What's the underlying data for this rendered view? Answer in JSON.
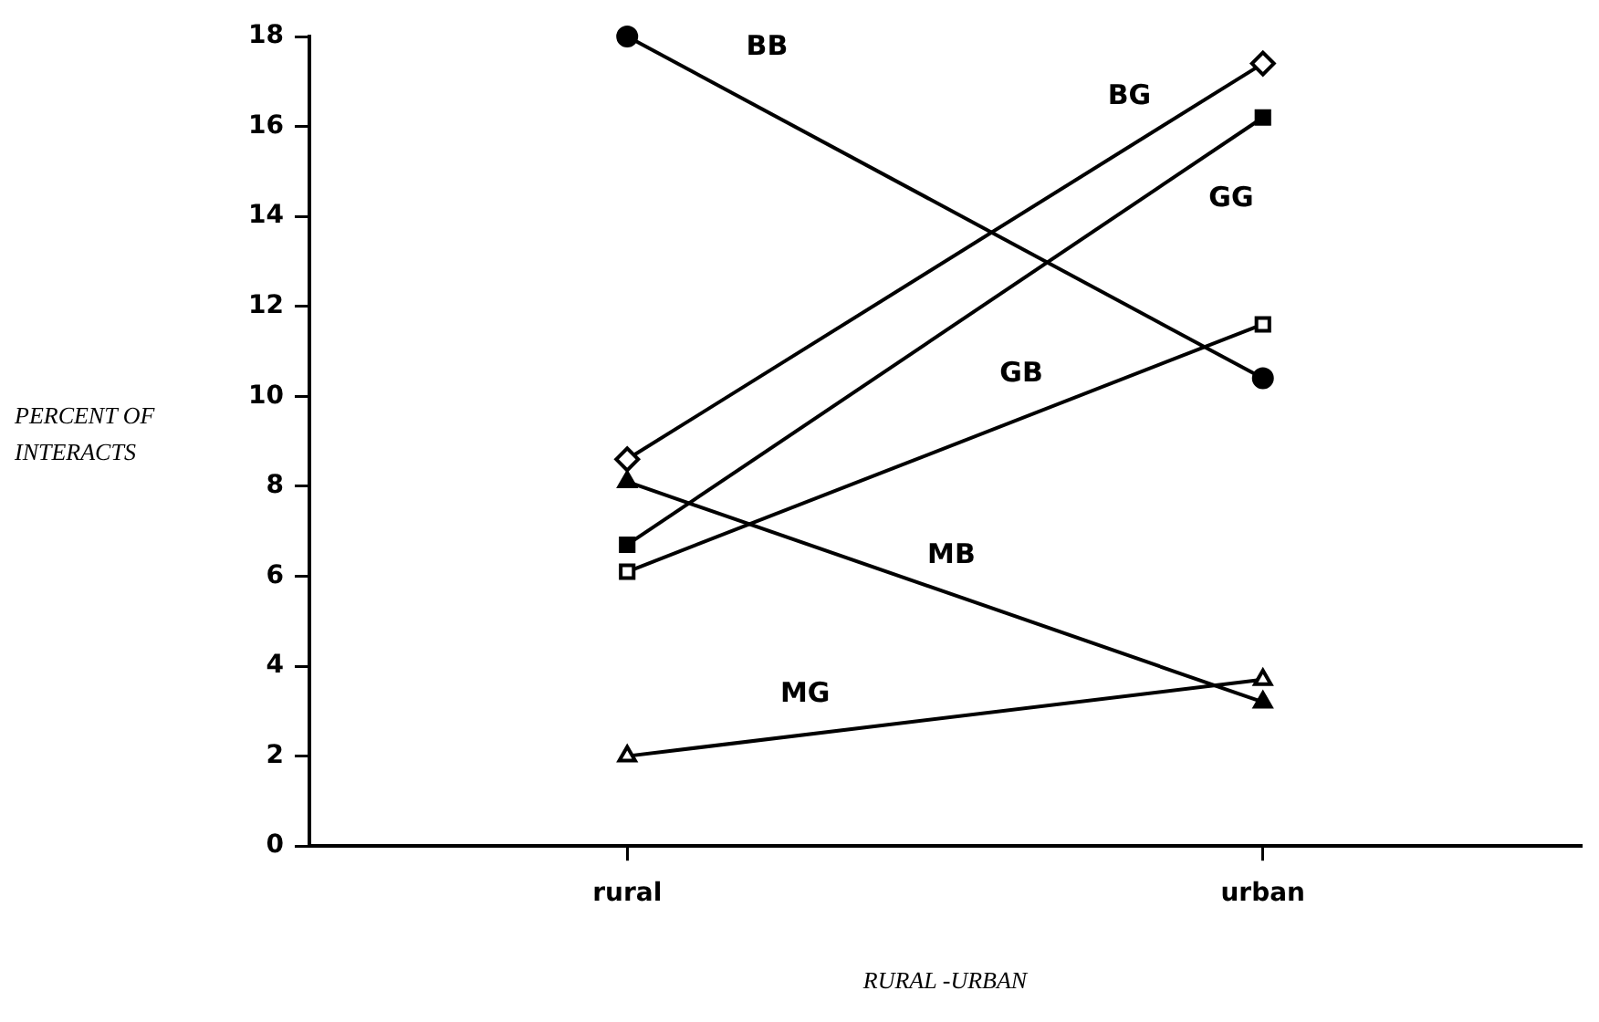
{
  "chart_data": {
    "type": "line",
    "xlabel": "RURAL -URBAN",
    "ylabel": "PERCENT OF INTERACTS",
    "categories": [
      "rural",
      "urban"
    ],
    "ylim": [
      0,
      18
    ],
    "yticks": [
      0,
      2,
      4,
      6,
      8,
      10,
      12,
      14,
      16,
      18
    ],
    "grid": false,
    "legend": false,
    "line_style": "solid",
    "series": [
      {
        "name": "BB",
        "color": "#000000",
        "marker": "circle",
        "values": [
          18,
          10.4
        ]
      },
      {
        "name": "BG",
        "color": "#000000",
        "marker": "diamond",
        "values": [
          8.6,
          17.4
        ]
      },
      {
        "name": "GG",
        "color": "#000000",
        "marker": "square",
        "values": [
          6.7,
          16.2
        ]
      },
      {
        "name": "GB",
        "color": "#000000",
        "marker": "square",
        "values": [
          6.1,
          11.6
        ]
      },
      {
        "name": "MB",
        "color": "#000000",
        "marker": "triangle",
        "values": [
          8.1,
          3.2
        ]
      },
      {
        "name": "MG",
        "color": "#000000",
        "marker": "triangle",
        "values": [
          2.0,
          3.7
        ]
      }
    ]
  }
}
